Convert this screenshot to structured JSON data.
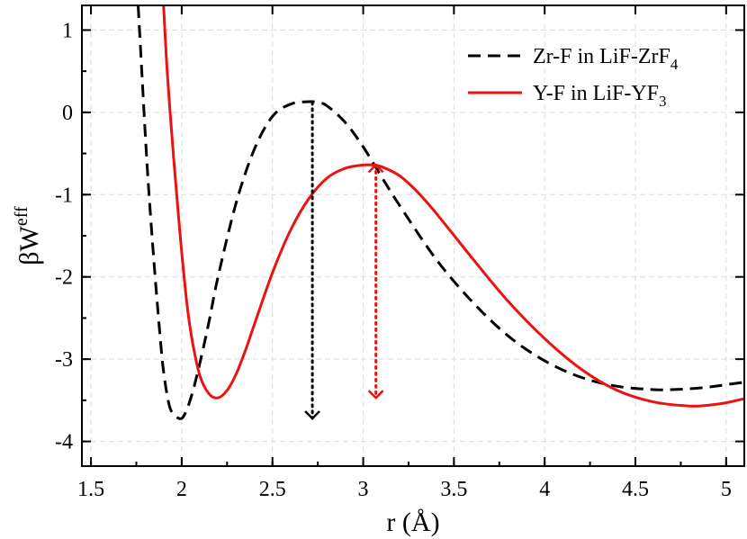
{
  "chart_data": {
    "type": "line",
    "title": "",
    "xlabel": "r (Å)",
    "ylabel_main": "βW",
    "ylabel_sup": "eff",
    "xlim": [
      1.45,
      5.1
    ],
    "ylim": [
      -4.3,
      1.3
    ],
    "xticks": [
      1.5,
      2,
      2.5,
      3,
      3.5,
      4,
      4.5,
      5
    ],
    "xtick_labels": [
      "1.5",
      "2",
      "2.5",
      "3",
      "3.5",
      "4",
      "4.5",
      "5"
    ],
    "yticks": [
      -4,
      -3,
      -2,
      -1,
      0,
      1
    ],
    "ytick_labels": [
      "-4",
      "-3",
      "-2",
      "-1",
      "0",
      "1"
    ],
    "grid": true,
    "legend_position": "top-right",
    "series": [
      {
        "name": "Zr-F in LiF-ZrF4",
        "legend_main": "Zr-F in LiF-ZrF",
        "legend_sub": "4",
        "color": "#000000",
        "style": "dashed",
        "x": [
          1.76,
          1.78,
          1.8,
          1.82,
          1.85,
          1.88,
          1.9,
          1.93,
          1.96,
          2.0,
          2.03,
          2.06,
          2.1,
          2.15,
          2.2,
          2.3,
          2.4,
          2.5,
          2.6,
          2.7,
          2.75,
          2.8,
          2.9,
          3.0,
          3.1,
          3.2,
          3.4,
          3.6,
          3.8,
          4.0,
          4.2,
          4.4,
          4.6,
          4.7,
          4.8,
          4.9,
          5.0,
          5.1
        ],
        "y": [
          1.3,
          0.5,
          -0.3,
          -1.0,
          -1.9,
          -2.7,
          -3.15,
          -3.55,
          -3.68,
          -3.72,
          -3.6,
          -3.4,
          -3.05,
          -2.55,
          -2.0,
          -1.1,
          -0.45,
          -0.05,
          0.1,
          0.13,
          0.12,
          0.08,
          -0.12,
          -0.42,
          -0.78,
          -1.13,
          -1.78,
          -2.3,
          -2.72,
          -3.02,
          -3.22,
          -3.33,
          -3.37,
          -3.37,
          -3.36,
          -3.34,
          -3.31,
          -3.28
        ]
      },
      {
        "name": "Y-F in LiF-YF3",
        "legend_main": "Y-F in LiF-YF",
        "legend_sub": "3",
        "color": "#ee1111",
        "style": "solid",
        "x": [
          1.9,
          1.92,
          1.95,
          1.98,
          2.0,
          2.03,
          2.06,
          2.1,
          2.15,
          2.2,
          2.25,
          2.3,
          2.35,
          2.4,
          2.5,
          2.6,
          2.7,
          2.8,
          2.9,
          3.0,
          3.05,
          3.1,
          3.2,
          3.3,
          3.4,
          3.6,
          3.8,
          4.0,
          4.2,
          4.4,
          4.6,
          4.8,
          4.9,
          5.0,
          5.1
        ],
        "y": [
          1.3,
          0.5,
          -0.4,
          -1.2,
          -1.7,
          -2.35,
          -2.8,
          -3.2,
          -3.42,
          -3.47,
          -3.38,
          -3.18,
          -2.9,
          -2.58,
          -1.95,
          -1.43,
          -1.05,
          -0.8,
          -0.68,
          -0.64,
          -0.64,
          -0.66,
          -0.77,
          -0.97,
          -1.22,
          -1.77,
          -2.3,
          -2.75,
          -3.12,
          -3.38,
          -3.52,
          -3.57,
          -3.56,
          -3.53,
          -3.48
        ]
      }
    ],
    "annotations": [
      {
        "name": "zr-barrier-arrow",
        "x": 2.72,
        "y_from": 0.12,
        "y_to": -3.72,
        "color": "#000000",
        "style": "dotted",
        "head": "down"
      },
      {
        "name": "y-barrier-arrow",
        "x": 3.07,
        "y_from": -0.64,
        "y_to": -3.47,
        "color": "#ee1111",
        "style": "dotted",
        "head": "both"
      }
    ]
  }
}
